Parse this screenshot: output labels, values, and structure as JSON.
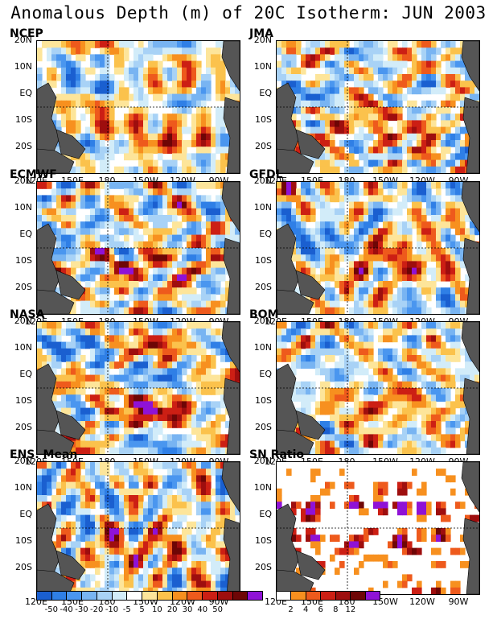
{
  "title": "Anomalous Depth (m) of 20C Isotherm: JUN 2003",
  "lat_labels": [
    "20N",
    "10N",
    "EQ",
    "10S",
    "20S"
  ],
  "lon_labels": [
    "120E",
    "150E",
    "180",
    "150W",
    "120W",
    "90W"
  ],
  "panels": [
    {
      "name": "NCEP",
      "pattern": 1
    },
    {
      "name": "JMA",
      "pattern": 2
    },
    {
      "name": "ECMWF",
      "pattern": 3
    },
    {
      "name": "GFDL",
      "pattern": 4
    },
    {
      "name": "NASA",
      "pattern": 5
    },
    {
      "name": "BOM",
      "pattern": 6
    },
    {
      "name": "ENS. Mean",
      "pattern": 7
    },
    {
      "name": "SN Ratio",
      "pattern": 8
    }
  ],
  "anomaly_colorbar": {
    "colors": [
      "#1a5fd0",
      "#2f7fe6",
      "#4a96ef",
      "#78b4f2",
      "#a8d2f6",
      "#d2ecf9",
      "#ffffff",
      "#fde59a",
      "#fbc24c",
      "#f7901f",
      "#ee5a1c",
      "#cc1f14",
      "#9e0e0e",
      "#6e0606",
      "#8f12d6"
    ],
    "labels": [
      "-50",
      "-40",
      "-30",
      "-20",
      "-10",
      "-5",
      "5",
      "10",
      "20",
      "30",
      "40",
      "50"
    ]
  },
  "snr_colorbar": {
    "colors": [
      "#ffffff",
      "#f7901f",
      "#ee5a1c",
      "#cc1f14",
      "#9e0e0e",
      "#6e0606",
      "#8f12d6"
    ],
    "labels": [
      "2",
      "4",
      "6",
      "8",
      "12"
    ]
  },
  "land_color": "#555555"
}
